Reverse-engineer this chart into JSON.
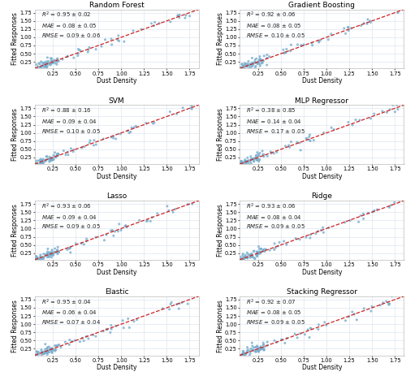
{
  "subplots": [
    {
      "title": "Random Forest",
      "r2": "0.95",
      "r2e": "0.02",
      "mae": "0.08",
      "maee": "0.05",
      "rmse": "0.09",
      "rmsee": "0.06"
    },
    {
      "title": "Gradient Boosting",
      "r2": "0.92",
      "r2e": "0.06",
      "mae": "0.08",
      "maee": "0.05",
      "rmse": "0.10",
      "rmsee": "0.05"
    },
    {
      "title": "SVM",
      "r2": "0.88",
      "r2e": "0.16",
      "mae": "0.09",
      "maee": "0.04",
      "rmse": "0.10",
      "rmsee": "0.05"
    },
    {
      "title": "MLP Regressor",
      "r2": "0.38",
      "r2e": "0.85",
      "mae": "0.14",
      "maee": "0.04",
      "rmse": "0.17",
      "rmsee": "0.05"
    },
    {
      "title": "Lasso",
      "r2": "0.93",
      "r2e": "0.06",
      "mae": "0.09",
      "maee": "0.04",
      "rmse": "0.09",
      "rmsee": "0.05"
    },
    {
      "title": "Ridge",
      "r2": "0.93",
      "r2e": "0.06",
      "mae": "0.08",
      "maee": "0.04",
      "rmse": "0.09",
      "rmsee": "0.05"
    },
    {
      "title": "Elastic",
      "r2": "0.95",
      "r2e": "0.04",
      "mae": "0.06",
      "maee": "0.04",
      "rmse": "0.07",
      "rmsee": "0.04"
    },
    {
      "title": "Stacking Regressor",
      "r2": "0.92",
      "r2e": "0.07",
      "mae": "0.08",
      "maee": "0.05",
      "rmse": "0.09",
      "rmsee": "0.05"
    }
  ],
  "xlabel": "Dust Density",
  "ylabel": "Fitted Responses",
  "xlim": [
    0.05,
    1.85
  ],
  "ylim": [
    0.05,
    1.85
  ],
  "xticks": [
    0.25,
    0.5,
    0.75,
    1.0,
    1.25,
    1.5,
    1.75
  ],
  "yticks": [
    0.25,
    0.5,
    0.75,
    1.0,
    1.25,
    1.5,
    1.75
  ],
  "scatter_color": "#7aaecd",
  "line_color": "#cc2222",
  "bg_color": "#ffffff",
  "grid_color": "#dce6f0",
  "annotation_fontsize": 5.0,
  "title_fontsize": 6.5,
  "axis_label_fontsize": 5.5,
  "tick_fontsize": 4.8,
  "n_cluster_low": 60,
  "n_cluster_mid": 20,
  "n_cluster_high": 15
}
